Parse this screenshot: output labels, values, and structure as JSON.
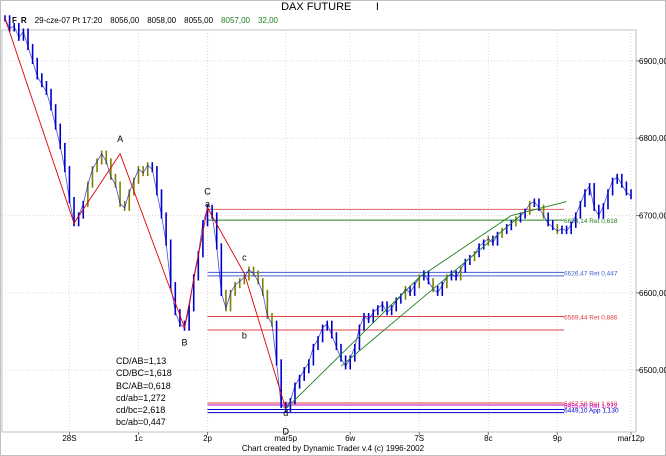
{
  "header": {
    "title": "DAX FUTURE",
    "interval_mark": "I",
    "flags": [
      "F",
      "R"
    ],
    "quote": {
      "datetime": "29-cze-07 Pt 17:20",
      "open": "8056,00",
      "high": "8058,00",
      "low": "8055,00",
      "close": "8057,00",
      "change": "32,00"
    }
  },
  "footer": "Chart created by Dynamic Trader v.4  (c) 1996-2002",
  "stats": [
    "CD/AB=1,13",
    "CD/BC=1,618",
    "BC/AB=0,618",
    "cd/ab=1,272",
    "cd/bc=2,618",
    "bc/ab=0,447"
  ],
  "chart_data": {
    "type": "line",
    "title": "DAX FUTURE",
    "xlabel": "",
    "ylabel": "",
    "ylim": [
      6420,
      6940
    ],
    "grid": true,
    "x_ticks": [
      "28S",
      "1c",
      "2p",
      "mar5p",
      "6w",
      "7S",
      "8c",
      "9p",
      "mar12p"
    ],
    "x_tick_idx": [
      14,
      29,
      44,
      61,
      75,
      90,
      105,
      120,
      136
    ],
    "y_ticks": [
      6500,
      6600,
      6700,
      6800,
      6900
    ],
    "y_tick_labels": [
      "6500,00",
      "6600,00",
      "6700,00",
      "6800,00",
      "6900,00"
    ],
    "series": [
      {
        "color": "#0000cc",
        "values": [
          6955,
          6942,
          6945,
          6930,
          6938,
          6918,
          6900,
          6880,
          6870,
          6860,
          6840,
          6815,
          6790,
          6760,
          6720,
          6690,
          6700,
          6715,
          6740,
          6760,
          6770,
          6780,
          6770,
          6750,
          6740,
          6715,
          6710,
          6730,
          6745,
          6760,
          6755,
          6765,
          6760,
          6730,
          6700,
          6665,
          6610,
          6575,
          6560,
          6555,
          6580,
          6620,
          6650,
          6690,
          6710,
          6700,
          6660,
          6600,
          6580,
          6600,
          6610,
          6615,
          6620,
          6630,
          6625,
          6615,
          6600,
          6570,
          6560,
          6510,
          6455,
          6450,
          6460,
          6480,
          6490,
          6500,
          6510,
          6530,
          6540,
          6555,
          6560,
          6545,
          6530,
          6515,
          6505,
          6515,
          6530,
          6555,
          6570,
          6565,
          6575,
          6580,
          6585,
          6575,
          6580,
          6590,
          6595,
          6605,
          6600,
          6610,
          6620,
          6625,
          6615,
          6605,
          6600,
          6610,
          6620,
          6625,
          6620,
          6630,
          6640,
          6645,
          6650,
          6660,
          6665,
          6670,
          6665,
          6675,
          6680,
          6685,
          6690,
          6695,
          6700,
          6705,
          6715,
          6718,
          6710,
          6700,
          6690,
          6685,
          6680,
          6683,
          6680,
          6688,
          6700,
          6715,
          6730,
          6738,
          6710,
          6700,
          6712,
          6730,
          6745,
          6750,
          6740,
          6730,
          6725
        ]
      }
    ],
    "pattern_lines": [
      {
        "color": "#e00000",
        "points": [
          [
            0,
            6955
          ],
          [
            15,
            6690
          ],
          [
            25,
            6780
          ],
          [
            39,
            6555
          ],
          [
            44,
            6710
          ],
          [
            52,
            6625
          ],
          [
            61,
            6450
          ]
        ]
      },
      {
        "color": "#208020",
        "points": [
          [
            61,
            6450
          ],
          [
            90,
            6620
          ],
          [
            110,
            6700
          ],
          [
            122,
            6718
          ]
        ]
      },
      {
        "color": "#208020",
        "points": [
          [
            73,
            6505
          ],
          [
            112,
            6700
          ]
        ]
      }
    ],
    "annotations": [
      {
        "text": "A",
        "x": 25,
        "y": 6795
      },
      {
        "text": "B",
        "x": 39,
        "y": 6532
      },
      {
        "text": "C",
        "x": 44,
        "y": 6727
      },
      {
        "text": "a",
        "x": 44,
        "y": 6711
      },
      {
        "text": "c",
        "x": 52,
        "y": 6642
      },
      {
        "text": "b",
        "x": 52,
        "y": 6541
      },
      {
        "text": "d",
        "x": 61,
        "y": 6441
      },
      {
        "text": "D",
        "x": 61,
        "y": 6417
      }
    ],
    "levels": [
      {
        "value": 6708,
        "color": "#e06060",
        "label": ""
      },
      {
        "value": 6694.14,
        "color": "#208020",
        "label": "6694,14 Ret 0,618"
      },
      {
        "value": 6626.47,
        "color": "#4060d0",
        "label": "6626,47 Ret 0,447"
      },
      {
        "value": 6622,
        "color": "#4060d0",
        "label": ""
      },
      {
        "value": 6569.44,
        "color": "#e04040",
        "label": "6569,44 Ret 0,886"
      },
      {
        "value": 6552,
        "color": "#e04040",
        "label": ""
      },
      {
        "value": 6457.5,
        "color": "#e04040",
        "label": "6457,50 Ret 1,618"
      },
      {
        "value": 6455,
        "color": "#c000c0",
        "label": "6455,00 Ret 1,272"
      },
      {
        "value": 6449.1,
        "color": "#0000cc",
        "label": "6449,10 App 1,130"
      },
      {
        "value": 6445,
        "color": "#0000cc",
        "label": ""
      }
    ]
  }
}
